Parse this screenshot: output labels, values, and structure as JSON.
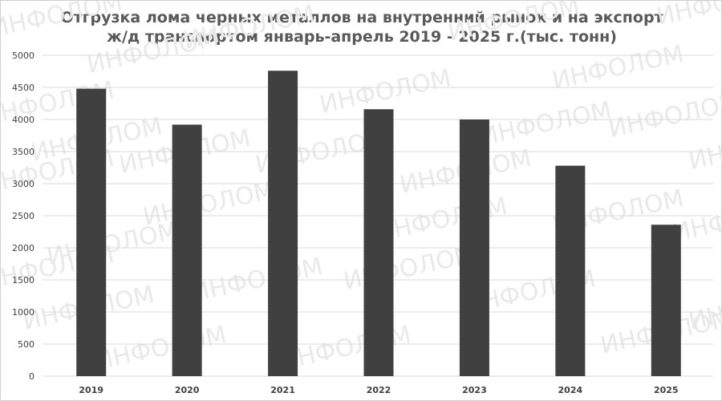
{
  "chart_data": {
    "type": "bar",
    "title": "Отгрузка лома черных металлов на внутренний рынок и на экспорт\nж/д транспортом январь-апрель 2019 - 2025 г.(тыс. тонн)",
    "categories": [
      "2019",
      "2020",
      "2021",
      "2022",
      "2023",
      "2024",
      "2025"
    ],
    "values": [
      4480,
      3920,
      4760,
      4160,
      4000,
      3280,
      2360
    ],
    "ylim": [
      0,
      5000
    ],
    "yticks": [
      0,
      500,
      1000,
      1500,
      2000,
      2500,
      3000,
      3500,
      4000,
      4500,
      5000
    ],
    "xlabel": "",
    "ylabel": "",
    "grid": true,
    "legend": "none",
    "bar_color": "#404040",
    "grid_color": "#d9d9d9"
  },
  "watermark": "ИНФОЛОМ"
}
